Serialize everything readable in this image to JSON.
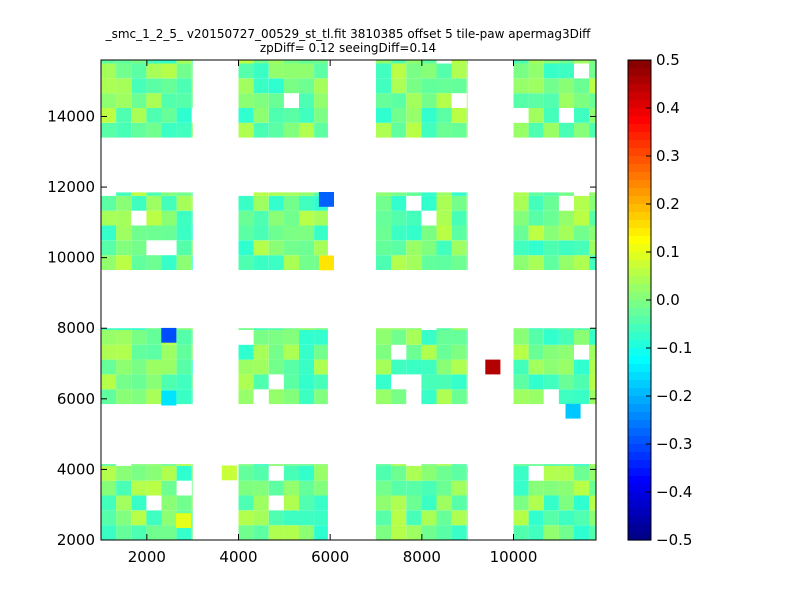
{
  "chart_data": {
    "type": "heatmap",
    "title_lines": [
      "_smc_1_2_5_ v20150727_00529_st_tl.fit 3810385 offset 5 tile-paw apermag3Diff",
      "zpDiff= 0.12 seeingDiff=0.14"
    ],
    "xlabel": "",
    "ylabel": "",
    "xlim": [
      1000,
      11800
    ],
    "ylim": [
      2000,
      15600
    ],
    "xticks": [
      2000,
      4000,
      6000,
      8000,
      10000
    ],
    "xtick_labels": [
      "2000",
      "4000",
      "6000",
      "8000",
      "10000"
    ],
    "yticks": [
      2000,
      4000,
      6000,
      8000,
      10000,
      12000,
      14000
    ],
    "ytick_labels": [
      "2000",
      "4000",
      "6000",
      "8000",
      "10000",
      "12000",
      "14000"
    ],
    "grid": false,
    "colormap": "jet",
    "colorbar": {
      "vmin": -0.5,
      "vmax": 0.5,
      "ticks": [
        0.5,
        0.4,
        0.3,
        0.2,
        0.1,
        0.0,
        -0.1,
        -0.2,
        -0.3,
        -0.4,
        -0.5
      ],
      "tick_labels": [
        "0.5",
        "0.4",
        "0.3",
        "0.2",
        "0.1",
        "0.0",
        "−0.1",
        "−0.2",
        "−0.3",
        "−0.4",
        "−0.5"
      ]
    },
    "cell_width": 330,
    "cell_height": 420,
    "typical_value_range": [
      -0.08,
      0.06
    ],
    "blocks": [
      {
        "xmin": 1000,
        "xmax": 3000,
        "ymin": 13400,
        "ymax": 15600
      },
      {
        "xmin": 4000,
        "xmax": 5950,
        "ymin": 13400,
        "ymax": 15600
      },
      {
        "xmin": 7000,
        "xmax": 9000,
        "ymin": 13400,
        "ymax": 15600
      },
      {
        "xmin": 10000,
        "xmax": 11800,
        "ymin": 13400,
        "ymax": 15600
      },
      {
        "xmin": 1000,
        "xmax": 3000,
        "ymin": 9650,
        "ymax": 11850
      },
      {
        "xmin": 4000,
        "xmax": 5950,
        "ymin": 9650,
        "ymax": 11850
      },
      {
        "xmin": 7000,
        "xmax": 9000,
        "ymin": 9650,
        "ymax": 11850
      },
      {
        "xmin": 10000,
        "xmax": 11800,
        "ymin": 9650,
        "ymax": 11850
      },
      {
        "xmin": 1000,
        "xmax": 3000,
        "ymin": 5850,
        "ymax": 8000
      },
      {
        "xmin": 4000,
        "xmax": 5950,
        "ymin": 5850,
        "ymax": 8000
      },
      {
        "xmin": 7000,
        "xmax": 9000,
        "ymin": 5850,
        "ymax": 8000
      },
      {
        "xmin": 10000,
        "xmax": 11800,
        "ymin": 5850,
        "ymax": 8000
      },
      {
        "xmin": 1000,
        "xmax": 3000,
        "ymin": 2000,
        "ymax": 4150
      },
      {
        "xmin": 4000,
        "xmax": 5950,
        "ymin": 2000,
        "ymax": 4150
      },
      {
        "xmin": 7000,
        "xmax": 9000,
        "ymin": 2000,
        "ymax": 4150
      },
      {
        "xmin": 10000,
        "xmax": 11800,
        "ymin": 2000,
        "ymax": 4150
      }
    ],
    "notable_cells": [
      {
        "x": 5920,
        "y": 11650,
        "value": -0.28
      },
      {
        "x": 5920,
        "y": 9850,
        "value": 0.15
      },
      {
        "x": 2480,
        "y": 7800,
        "value": -0.3
      },
      {
        "x": 9550,
        "y": 6900,
        "value": 0.45
      },
      {
        "x": 2480,
        "y": 6020,
        "value": -0.15
      },
      {
        "x": 11300,
        "y": 5650,
        "value": -0.18
      },
      {
        "x": 2800,
        "y": 2550,
        "value": 0.1
      },
      {
        "x": 3800,
        "y": 3900,
        "value": 0.07
      }
    ]
  }
}
